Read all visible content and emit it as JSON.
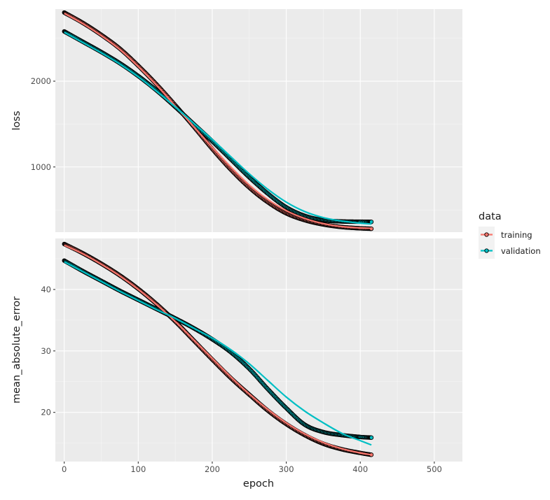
{
  "chart_data": {
    "type": "line",
    "xlabel": "epoch",
    "xlim": [
      -12,
      538
    ],
    "x_ticks": [
      0,
      100,
      200,
      300,
      400,
      500
    ],
    "x_ticklabels": [
      "0",
      "100",
      "200",
      "300",
      "400",
      "500"
    ],
    "legend": {
      "title": "data",
      "position": "right",
      "entries": [
        {
          "label": "training",
          "color": "#F8766D"
        },
        {
          "label": "validation",
          "color": "#00BFC4"
        }
      ]
    },
    "smooth_line_colors": {
      "training": "#F8766D",
      "validation": "#00BFC4"
    },
    "point_outline_color": "#000000",
    "grid": true,
    "panels": [
      {
        "ylabel": "loss",
        "ylim": [
          240,
          2840
        ],
        "y_ticks": [
          1000,
          2000
        ],
        "y_ticklabels": [
          "1000",
          "2000"
        ],
        "series": [
          {
            "name": "training",
            "x": [
              0,
              25,
              50,
              75,
              100,
              125,
              150,
              175,
              200,
              225,
              250,
              275,
              300,
              325,
              350,
              375,
              400,
              415
            ],
            "values": [
              2800,
              2680,
              2540,
              2380,
              2180,
              1960,
              1720,
              1470,
              1210,
              970,
              760,
              590,
              460,
              380,
              330,
              300,
              285,
              280
            ],
            "smooth": [
              2790,
              2670,
              2530,
              2370,
              2170,
              1950,
              1710,
              1470,
              1230,
              1000,
              790,
              620,
              490,
              400,
              340,
              305,
              290,
              285
            ]
          },
          {
            "name": "validation",
            "x": [
              0,
              25,
              50,
              75,
              100,
              125,
              150,
              175,
              200,
              225,
              250,
              275,
              300,
              325,
              350,
              375,
              400,
              415
            ],
            "values": [
              2580,
              2460,
              2340,
              2210,
              2060,
              1890,
              1700,
              1500,
              1300,
              1090,
              880,
              690,
              530,
              430,
              380,
              365,
              362,
              360
            ],
            "smooth": [
              2570,
              2450,
              2330,
              2200,
              2050,
              1880,
              1700,
              1510,
              1320,
              1120,
              920,
              740,
              590,
              480,
              410,
              370,
              345,
              335
            ]
          }
        ]
      },
      {
        "ylabel": "mean_absolute_error",
        "ylim": [
          12.0,
          48.3
        ],
        "y_ticks": [
          20,
          30,
          40
        ],
        "y_ticklabels": [
          "20",
          "30",
          "40"
        ],
        "series": [
          {
            "name": "training",
            "x": [
              0,
              25,
              50,
              75,
              100,
              125,
              150,
              175,
              200,
              225,
              250,
              275,
              300,
              325,
              350,
              375,
              400,
              415
            ],
            "values": [
              47.4,
              45.9,
              44.2,
              42.3,
              40.1,
              37.6,
              34.8,
              31.7,
              28.6,
              25.6,
              22.9,
              20.3,
              18.1,
              16.3,
              14.9,
              14.0,
              13.4,
              13.1
            ],
            "smooth": [
              47.2,
              45.8,
              44.1,
              42.2,
              40.0,
              37.5,
              34.8,
              31.8,
              28.8,
              25.8,
              23.0,
              20.5,
              18.3,
              16.5,
              15.1,
              14.1,
              13.4,
              13.1
            ]
          },
          {
            "name": "validation",
            "x": [
              0,
              25,
              50,
              75,
              100,
              125,
              150,
              175,
              200,
              225,
              250,
              275,
              300,
              325,
              350,
              375,
              400,
              415
            ],
            "values": [
              44.7,
              43.0,
              41.4,
              39.8,
              38.3,
              36.8,
              35.3,
              33.7,
              31.9,
              29.8,
              27.1,
              23.8,
              20.7,
              18.0,
              16.8,
              16.3,
              16.0,
              15.9
            ],
            "smooth": [
              44.5,
              42.9,
              41.3,
              39.7,
              38.2,
              36.7,
              35.3,
              33.7,
              32.1,
              30.2,
              27.9,
              25.2,
              22.5,
              20.2,
              18.3,
              16.6,
              15.4,
              14.7
            ]
          }
        ]
      }
    ]
  }
}
